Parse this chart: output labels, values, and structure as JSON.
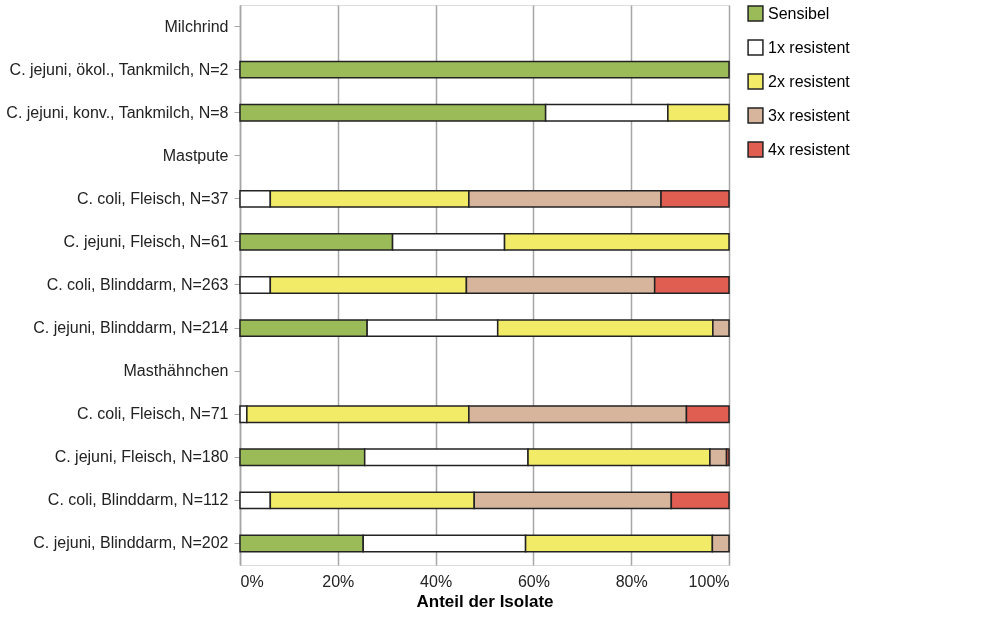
{
  "chart_data": {
    "type": "bar",
    "orientation": "horizontal",
    "stacked": true,
    "xlabel": "Anteil der Isolate",
    "categories": [
      "Milchrind",
      "C. jejuni, ökol., Tankmilch, N=2",
      "C. jejuni, konv., Tankmilch, N=8",
      "Mastpute",
      "C. coli, Fleisch, N=37",
      "C. jejuni, Fleisch, N=61",
      "C. coli, Blinddarm, N=263",
      "C. jejuni, Blinddarm, N=214",
      "Masthähnchen",
      "C. coli, Fleisch, N=71",
      "C. jejuni, Fleisch, N=180",
      "C. coli, Blinddarm, N=112",
      "C. jejuni, Blinddarm, N=202"
    ],
    "series": [
      {
        "name": "Sensibel",
        "color": "#9bbb59",
        "values": [
          null,
          100,
          62.5,
          null,
          null,
          31.2,
          null,
          26.0,
          null,
          null,
          25.5,
          null,
          25.2
        ]
      },
      {
        "name": "1x resistent",
        "color": "#ffffff",
        "values": [
          null,
          null,
          25,
          null,
          6.2,
          22.9,
          6.2,
          26.7,
          null,
          1.4,
          33.4,
          6.2,
          33.2
        ]
      },
      {
        "name": "2x resistent",
        "color": "#f2eb67",
        "values": [
          null,
          null,
          12.5,
          null,
          40.6,
          45.9,
          40.1,
          44.0,
          null,
          45.4,
          37.2,
          41.7,
          38.2
        ]
      },
      {
        "name": "3x resistent",
        "color": "#d7b49c",
        "values": [
          null,
          null,
          null,
          null,
          39.3,
          null,
          38.5,
          3.3,
          null,
          44.5,
          3.4,
          40.3,
          3.4
        ]
      },
      {
        "name": "4x resistent",
        "color": "#e05d52",
        "values": [
          null,
          null,
          null,
          null,
          13.9,
          null,
          15.2,
          null,
          null,
          8.7,
          0.5,
          11.8,
          null
        ]
      }
    ],
    "xlim": [
      0,
      100
    ],
    "xticks": [
      {
        "value": 0,
        "label": "0%"
      },
      {
        "value": 20,
        "label": "20%"
      },
      {
        "value": 40,
        "label": "40%"
      },
      {
        "value": 60,
        "label": "60%"
      },
      {
        "value": 80,
        "label": "80%"
      },
      {
        "value": 100,
        "label": "100%"
      }
    ],
    "grid": "x",
    "legend": "right"
  }
}
